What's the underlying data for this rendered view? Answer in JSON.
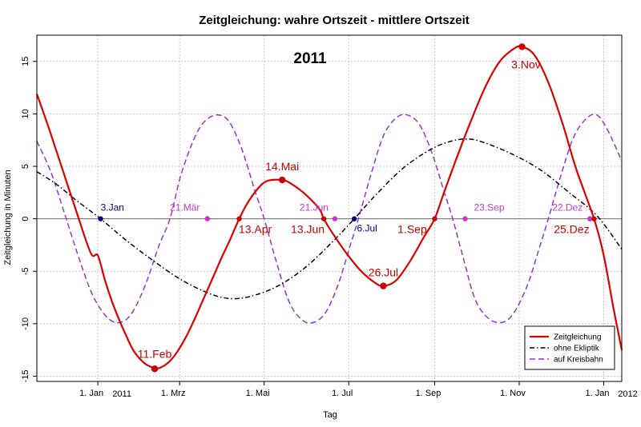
{
  "chart_data": {
    "type": "line",
    "title": "Zeitgleichung: wahre Ortszeit - mittlere Ortszeit",
    "year_label": "2011",
    "xlabel": "Tag",
    "ylabel": "Zeitgleichung in Minuten",
    "xlim": [
      -44,
      378
    ],
    "ylim": [
      -15.5,
      17.5
    ],
    "grid": true,
    "legend_position": "bottom-right",
    "x_ticks": [
      {
        "day": 0,
        "label": "1. Jan"
      },
      {
        "day": 59,
        "label": "1. Mrz"
      },
      {
        "day": 120,
        "label": "1. Mai"
      },
      {
        "day": 181,
        "label": "1. Jul"
      },
      {
        "day": 243,
        "label": "1. Sep"
      },
      {
        "day": 304,
        "label": "1. Nov"
      },
      {
        "day": 365,
        "label": "1. Jan"
      }
    ],
    "x_year_labels": [
      {
        "day": 0,
        "label": "2011"
      },
      {
        "day": 365,
        "label": "2012"
      }
    ],
    "y_ticks": [
      -15,
      -10,
      -5,
      0,
      5,
      10,
      15
    ],
    "series": [
      {
        "name": "Zeitgleichung",
        "color": "#dd0000",
        "style": "solid",
        "points": [
          [
            -44,
            11.9
          ],
          [
            -35,
            8.5
          ],
          [
            -25,
            4.5
          ],
          [
            -15,
            0.5
          ],
          [
            -5,
            -3.3
          ],
          [
            0,
            -3.5
          ],
          [
            5,
            -5.8
          ],
          [
            10,
            -7.8
          ],
          [
            15,
            -9.5
          ],
          [
            20,
            -11.0
          ],
          [
            25,
            -12.4
          ],
          [
            30,
            -13.3
          ],
          [
            35,
            -13.9
          ],
          [
            40,
            -14.2
          ],
          [
            41,
            -14.3
          ],
          [
            45,
            -14.2
          ],
          [
            50,
            -13.8
          ],
          [
            55,
            -13.1
          ],
          [
            60,
            -12.1
          ],
          [
            65,
            -10.9
          ],
          [
            70,
            -9.5
          ],
          [
            75,
            -8.0
          ],
          [
            80,
            -6.5
          ],
          [
            85,
            -5.0
          ],
          [
            90,
            -3.5
          ],
          [
            95,
            -2.1
          ],
          [
            102,
            0.0
          ],
          [
            108,
            1.5
          ],
          [
            115,
            2.8
          ],
          [
            122,
            3.6
          ],
          [
            133,
            3.7
          ],
          [
            140,
            3.3
          ],
          [
            150,
            2.3
          ],
          [
            160,
            0.9
          ],
          [
            163,
            0.0
          ],
          [
            170,
            -1.5
          ],
          [
            180,
            -3.4
          ],
          [
            190,
            -5.0
          ],
          [
            200,
            -6.1
          ],
          [
            206,
            -6.4
          ],
          [
            215,
            -5.9
          ],
          [
            225,
            -4.1
          ],
          [
            235,
            -1.8
          ],
          [
            243,
            0.0
          ],
          [
            250,
            2.6
          ],
          [
            260,
            6.2
          ],
          [
            270,
            9.6
          ],
          [
            280,
            12.7
          ],
          [
            290,
            15.0
          ],
          [
            300,
            16.2
          ],
          [
            306,
            16.4
          ],
          [
            315,
            15.6
          ],
          [
            325,
            13.0
          ],
          [
            335,
            9.2
          ],
          [
            345,
            4.8
          ],
          [
            358,
            0.0
          ],
          [
            365,
            -3.5
          ],
          [
            372,
            -8.5
          ],
          [
            378,
            -12.5
          ]
        ]
      },
      {
        "name": "ohne Ekliptik",
        "color": "#000022",
        "style": "dotdash",
        "points": [
          [
            -44,
            4.5
          ],
          [
            -30,
            3.3
          ],
          [
            -15,
            1.7
          ],
          [
            2,
            0.0
          ],
          [
            20,
            -2.0
          ],
          [
            40,
            -4.0
          ],
          [
            60,
            -5.8
          ],
          [
            80,
            -7.1
          ],
          [
            95,
            -7.6
          ],
          [
            110,
            -7.4
          ],
          [
            130,
            -6.4
          ],
          [
            150,
            -4.6
          ],
          [
            170,
            -2.1
          ],
          [
            185,
            0.0
          ],
          [
            200,
            2.2
          ],
          [
            220,
            4.8
          ],
          [
            240,
            6.6
          ],
          [
            255,
            7.4
          ],
          [
            268,
            7.6
          ],
          [
            280,
            7.2
          ],
          [
            300,
            6.1
          ],
          [
            320,
            4.6
          ],
          [
            340,
            2.5
          ],
          [
            360,
            0.3
          ],
          [
            378,
            -2.9
          ]
        ]
      },
      {
        "name": "auf Kreisbahn",
        "color": "#9933cc",
        "style": "dashed",
        "points": [
          [
            -44,
            7.4
          ],
          [
            -34,
            4.5
          ],
          [
            -24,
            0.5
          ],
          [
            -14,
            -3.6
          ],
          [
            -4,
            -7.2
          ],
          [
            6,
            -9.3
          ],
          [
            15,
            -9.9
          ],
          [
            24,
            -9.1
          ],
          [
            34,
            -6.4
          ],
          [
            44,
            -2.6
          ],
          [
            52,
            0.0
          ],
          [
            60,
            4.2
          ],
          [
            70,
            7.8
          ],
          [
            78,
            9.4
          ],
          [
            87,
            9.9
          ],
          [
            95,
            9.2
          ],
          [
            104,
            6.6
          ],
          [
            113,
            2.8
          ],
          [
            120,
            0.0
          ],
          [
            129,
            -4.2
          ],
          [
            138,
            -7.9
          ],
          [
            147,
            -9.6
          ],
          [
            155,
            -9.9
          ],
          [
            164,
            -9.0
          ],
          [
            173,
            -6.4
          ],
          [
            182,
            -2.6
          ],
          [
            188,
            0.0
          ],
          [
            197,
            4.2
          ],
          [
            206,
            7.9
          ],
          [
            215,
            9.6
          ],
          [
            223,
            9.9
          ],
          [
            232,
            9.0
          ],
          [
            241,
            6.3
          ],
          [
            250,
            2.5
          ],
          [
            256,
            0.0
          ],
          [
            264,
            -3.9
          ],
          [
            272,
            -7.6
          ],
          [
            281,
            -9.4
          ],
          [
            291,
            -9.9
          ],
          [
            300,
            -9.0
          ],
          [
            310,
            -6.3
          ],
          [
            318,
            -3.0
          ],
          [
            325,
            0.0
          ],
          [
            334,
            4.1
          ],
          [
            343,
            7.7
          ],
          [
            352,
            9.5
          ],
          [
            360,
            9.9
          ],
          [
            368,
            8.4
          ],
          [
            378,
            5.5
          ]
        ]
      }
    ],
    "annotations": [
      {
        "label": "3.Jan",
        "day": 2,
        "value": 0,
        "color": "#00008b",
        "size": "small",
        "marker": "small",
        "dx": 0,
        "dy": -10,
        "anchor": "start"
      },
      {
        "label": "21.Mär",
        "day": 79,
        "value": 0,
        "color": "#cc33cc",
        "size": "small",
        "marker": "small",
        "dx": -28,
        "dy": -10,
        "anchor": "middle"
      },
      {
        "label": "13.Apr",
        "day": 102,
        "value": 0,
        "color": "#cc0000",
        "size": "big",
        "marker": "small",
        "dx": 20,
        "dy": 18,
        "anchor": "middle"
      },
      {
        "label": "14.Mai",
        "day": 133,
        "value": 3.7,
        "color": "#cc0000",
        "size": "big",
        "marker": "big",
        "dx": 0,
        "dy": -12,
        "anchor": "middle"
      },
      {
        "label": "13.Jun",
        "day": 163,
        "value": 0,
        "color": "#cc0000",
        "size": "big",
        "marker": "small",
        "dx": -20,
        "dy": 18,
        "anchor": "middle"
      },
      {
        "label": "21.Jun",
        "day": 171,
        "value": 0,
        "color": "#cc33cc",
        "size": "small",
        "marker": "small",
        "dx": -26,
        "dy": -10,
        "anchor": "middle"
      },
      {
        "label": "6.Jul",
        "day": 185,
        "value": 0,
        "color": "#00008b",
        "size": "small",
        "marker": "small",
        "dx": 16,
        "dy": 16,
        "anchor": "middle"
      },
      {
        "label": "26.Jul",
        "day": 206,
        "value": -6.4,
        "color": "#cc0000",
        "size": "big",
        "marker": "big",
        "dx": 0,
        "dy": -12,
        "anchor": "middle"
      },
      {
        "label": "1.Sep",
        "day": 243,
        "value": 0,
        "color": "#cc0000",
        "size": "big",
        "marker": "small",
        "dx": -28,
        "dy": 18,
        "anchor": "middle"
      },
      {
        "label": "23.Sep",
        "day": 265,
        "value": 0,
        "color": "#cc33cc",
        "size": "small",
        "marker": "small",
        "dx": 30,
        "dy": -10,
        "anchor": "middle"
      },
      {
        "label": "3.Nov",
        "day": 306,
        "value": 16.4,
        "color": "#cc0000",
        "size": "big",
        "marker": "big",
        "dx": 5,
        "dy": 27,
        "anchor": "middle"
      },
      {
        "label": "22.Dez",
        "day": 355,
        "value": 0,
        "color": "#cc33cc",
        "size": "small",
        "marker": "small",
        "dx": -28,
        "dy": -10,
        "anchor": "middle"
      },
      {
        "label": "25.Dez",
        "day": 358,
        "value": 0,
        "color": "#cc0000",
        "size": "big",
        "marker": "small",
        "dx": -28,
        "dy": 18,
        "anchor": "middle"
      },
      {
        "label": "11.Feb",
        "day": 41,
        "value": -14.3,
        "color": "#cc0000",
        "size": "big",
        "marker": "big",
        "dx": 0,
        "dy": -14,
        "anchor": "middle"
      }
    ]
  }
}
